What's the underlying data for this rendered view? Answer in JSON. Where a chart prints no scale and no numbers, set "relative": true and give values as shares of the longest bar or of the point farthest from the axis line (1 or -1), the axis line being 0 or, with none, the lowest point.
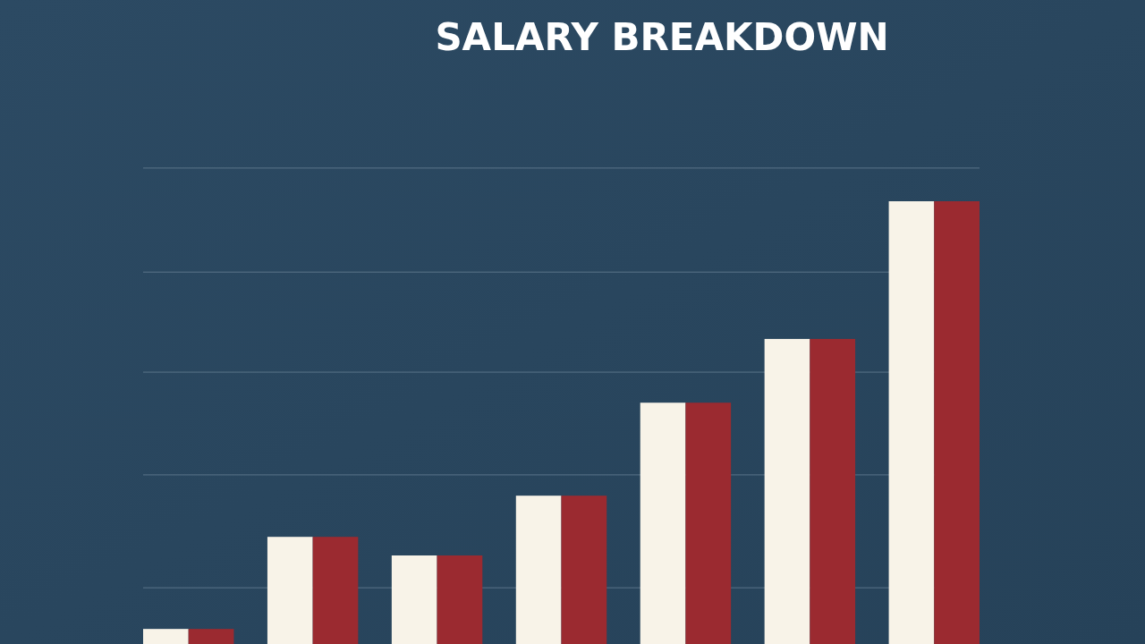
{
  "chart_data": {
    "type": "bar",
    "title": "SALARY BREAKDOWN",
    "relative": true,
    "categories": [
      null,
      null,
      null,
      null,
      null,
      null,
      null
    ],
    "series": [
      {
        "color": "#f8f3e8",
        "values": [
          0.034,
          0.242,
          0.2,
          0.335,
          0.545,
          0.689,
          1
        ]
      },
      {
        "color": "#9b2a30",
        "values": [
          0.034,
          0.242,
          0.2,
          0.335,
          0.545,
          0.689,
          1
        ]
      }
    ],
    "ref_lines": [
      {
        "axis": "y",
        "value": 1.075,
        "color": "#5a7489"
      },
      {
        "axis": "y",
        "value": 0.84,
        "color": "#5a7489"
      },
      {
        "axis": "y",
        "value": 0.614,
        "color": "#5a7489"
      },
      {
        "axis": "y",
        "value": 0.382,
        "color": "#5a7489"
      },
      {
        "axis": "y",
        "value": 0.127,
        "color": "#5a7489"
      }
    ]
  }
}
